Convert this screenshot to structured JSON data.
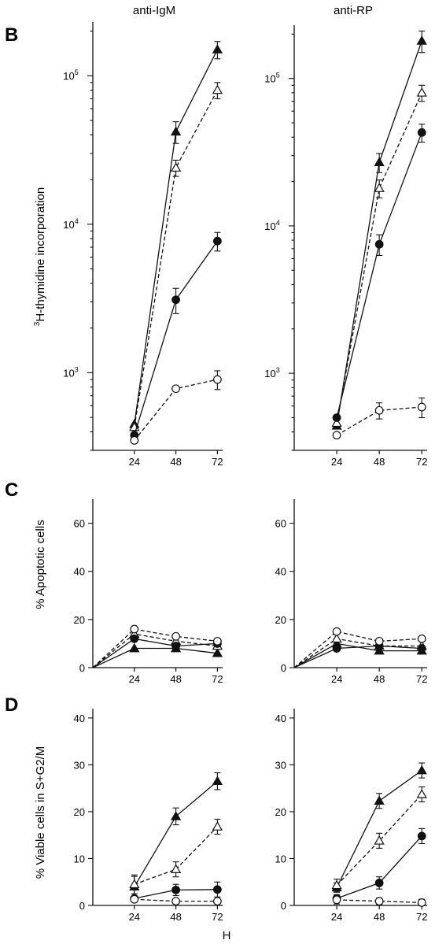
{
  "figure": {
    "column_titles": [
      "anti-IgM",
      "anti-RP"
    ],
    "panel_letters": [
      "B",
      "C",
      "D"
    ],
    "xlabel": "H",
    "ylabels": {
      "B_sup": "3",
      "B_main": "H-thymidine incorporation",
      "C": "% Apoptotic cells",
      "D": "% Viable cells in S+G2/M"
    },
    "x_ticks": [
      24,
      48,
      72
    ]
  },
  "chart_data": [
    {
      "id": "B-antiIgM",
      "panel": "B",
      "column": "anti-IgM",
      "type": "line",
      "yscale": "log",
      "x": [
        24,
        48,
        72
      ],
      "xlim": [
        0,
        75
      ],
      "ylim": [
        300,
        230000
      ],
      "yticks": [
        1000,
        10000,
        100000
      ],
      "ytick_labels": [
        {
          "base": "10",
          "exp": "3"
        },
        {
          "base": "10",
          "exp": "4"
        },
        {
          "base": "10",
          "exp": "5"
        }
      ],
      "series": [
        {
          "marker": "triangle-filled",
          "dash": false,
          "values": [
            450,
            42000,
            150000
          ],
          "err": [
            0,
            7000,
            20000
          ]
        },
        {
          "marker": "triangle-open",
          "dash": true,
          "values": [
            430,
            24000,
            80000
          ],
          "err": [
            0,
            3000,
            10000
          ]
        },
        {
          "marker": "circle-filled",
          "dash": false,
          "values": [
            380,
            3100,
            7700
          ],
          "err": [
            0,
            600,
            1100
          ]
        },
        {
          "marker": "circle-open",
          "dash": true,
          "values": [
            350,
            780,
            900
          ],
          "err": [
            0,
            0,
            130
          ]
        }
      ]
    },
    {
      "id": "B-antiRP",
      "panel": "B",
      "column": "anti-RP",
      "type": "line",
      "yscale": "log",
      "x": [
        24,
        48,
        72
      ],
      "xlim": [
        0,
        75
      ],
      "ylim": [
        300,
        230000
      ],
      "yticks": [
        1000,
        10000,
        100000
      ],
      "ytick_labels": [
        {
          "base": "10",
          "exp": "3"
        },
        {
          "base": "10",
          "exp": "4"
        },
        {
          "base": "10",
          "exp": "5"
        }
      ],
      "series": [
        {
          "marker": "triangle-filled",
          "dash": false,
          "values": [
            440,
            27000,
            180000
          ],
          "err": [
            0,
            4000,
            30000
          ]
        },
        {
          "marker": "triangle-open",
          "dash": true,
          "values": [
            460,
            18000,
            80000
          ],
          "err": [
            0,
            2500,
            10000
          ]
        },
        {
          "marker": "circle-filled",
          "dash": false,
          "values": [
            500,
            7500,
            43000
          ],
          "err": [
            0,
            1200,
            6000
          ]
        },
        {
          "marker": "circle-open",
          "dash": true,
          "values": [
            380,
            560,
            590
          ],
          "err": [
            0,
            70,
            90
          ]
        }
      ]
    },
    {
      "id": "C-antiIgM",
      "panel": "C",
      "column": "anti-IgM",
      "type": "line",
      "yscale": "linear",
      "x": [
        0,
        24,
        48,
        72
      ],
      "xlim": [
        0,
        75
      ],
      "ylim": [
        0,
        70
      ],
      "yticks": [
        0,
        20,
        40,
        60
      ],
      "series": [
        {
          "marker": "triangle-filled",
          "dash": false,
          "values": [
            0,
            8,
            8,
            6
          ]
        },
        {
          "marker": "triangle-open",
          "dash": true,
          "values": [
            0,
            14,
            11,
            9
          ]
        },
        {
          "marker": "circle-filled",
          "dash": false,
          "values": [
            0,
            12,
            9,
            10
          ]
        },
        {
          "marker": "circle-open",
          "dash": true,
          "values": [
            0,
            16,
            13,
            11
          ]
        }
      ]
    },
    {
      "id": "C-antiRP",
      "panel": "C",
      "column": "anti-RP",
      "type": "line",
      "yscale": "linear",
      "x": [
        0,
        24,
        48,
        72
      ],
      "xlim": [
        0,
        75
      ],
      "ylim": [
        0,
        70
      ],
      "yticks": [
        0,
        20,
        40,
        60
      ],
      "series": [
        {
          "marker": "triangle-filled",
          "dash": false,
          "values": [
            0,
            10,
            7,
            7
          ]
        },
        {
          "marker": "triangle-open",
          "dash": true,
          "values": [
            0,
            12,
            9,
            9
          ]
        },
        {
          "marker": "circle-filled",
          "dash": false,
          "values": [
            0,
            8,
            9,
            8
          ]
        },
        {
          "marker": "circle-open",
          "dash": true,
          "values": [
            0,
            15,
            11,
            12
          ]
        }
      ]
    },
    {
      "id": "D-antiIgM",
      "panel": "D",
      "column": "anti-IgM",
      "type": "line",
      "yscale": "linear",
      "x": [
        24,
        48,
        72
      ],
      "xlim": [
        0,
        75
      ],
      "ylim": [
        0,
        42
      ],
      "yticks": [
        0,
        10,
        20,
        30,
        40
      ],
      "series": [
        {
          "marker": "triangle-filled",
          "dash": false,
          "values": [
            4,
            19,
            26.5
          ],
          "err": [
            2.2,
            1.8,
            1.8
          ]
        },
        {
          "marker": "triangle-open",
          "dash": true,
          "values": [
            4.5,
            7.7,
            16.8
          ],
          "err": [
            2,
            1.6,
            1.6
          ]
        },
        {
          "marker": "circle-filled",
          "dash": false,
          "values": [
            1.5,
            3.3,
            3.4
          ],
          "err": [
            0.5,
            1.2,
            1.6
          ]
        },
        {
          "marker": "circle-open",
          "dash": true,
          "values": [
            1.3,
            0.9,
            0.9
          ],
          "err": [
            0.4,
            0.4,
            0.4
          ]
        }
      ]
    },
    {
      "id": "D-antiRP",
      "panel": "D",
      "column": "anti-RP",
      "type": "line",
      "yscale": "linear",
      "x": [
        24,
        48,
        72
      ],
      "xlim": [
        0,
        75
      ],
      "ylim": [
        0,
        42
      ],
      "yticks": [
        0,
        10,
        20,
        30,
        40
      ],
      "series": [
        {
          "marker": "triangle-filled",
          "dash": false,
          "values": [
            3.8,
            22.3,
            28.8
          ],
          "err": [
            1,
            1.6,
            1.6
          ]
        },
        {
          "marker": "triangle-open",
          "dash": true,
          "values": [
            4.3,
            13.8,
            23.7
          ],
          "err": [
            1.3,
            1.6,
            1.6
          ]
        },
        {
          "marker": "circle-filled",
          "dash": false,
          "values": [
            1.5,
            4.8,
            14.8
          ],
          "err": [
            0.8,
            1.3,
            1.6
          ]
        },
        {
          "marker": "circle-open",
          "dash": true,
          "values": [
            1.2,
            0.9,
            0.6
          ],
          "err": [
            0.9,
            0.7,
            0.7
          ]
        }
      ]
    }
  ]
}
